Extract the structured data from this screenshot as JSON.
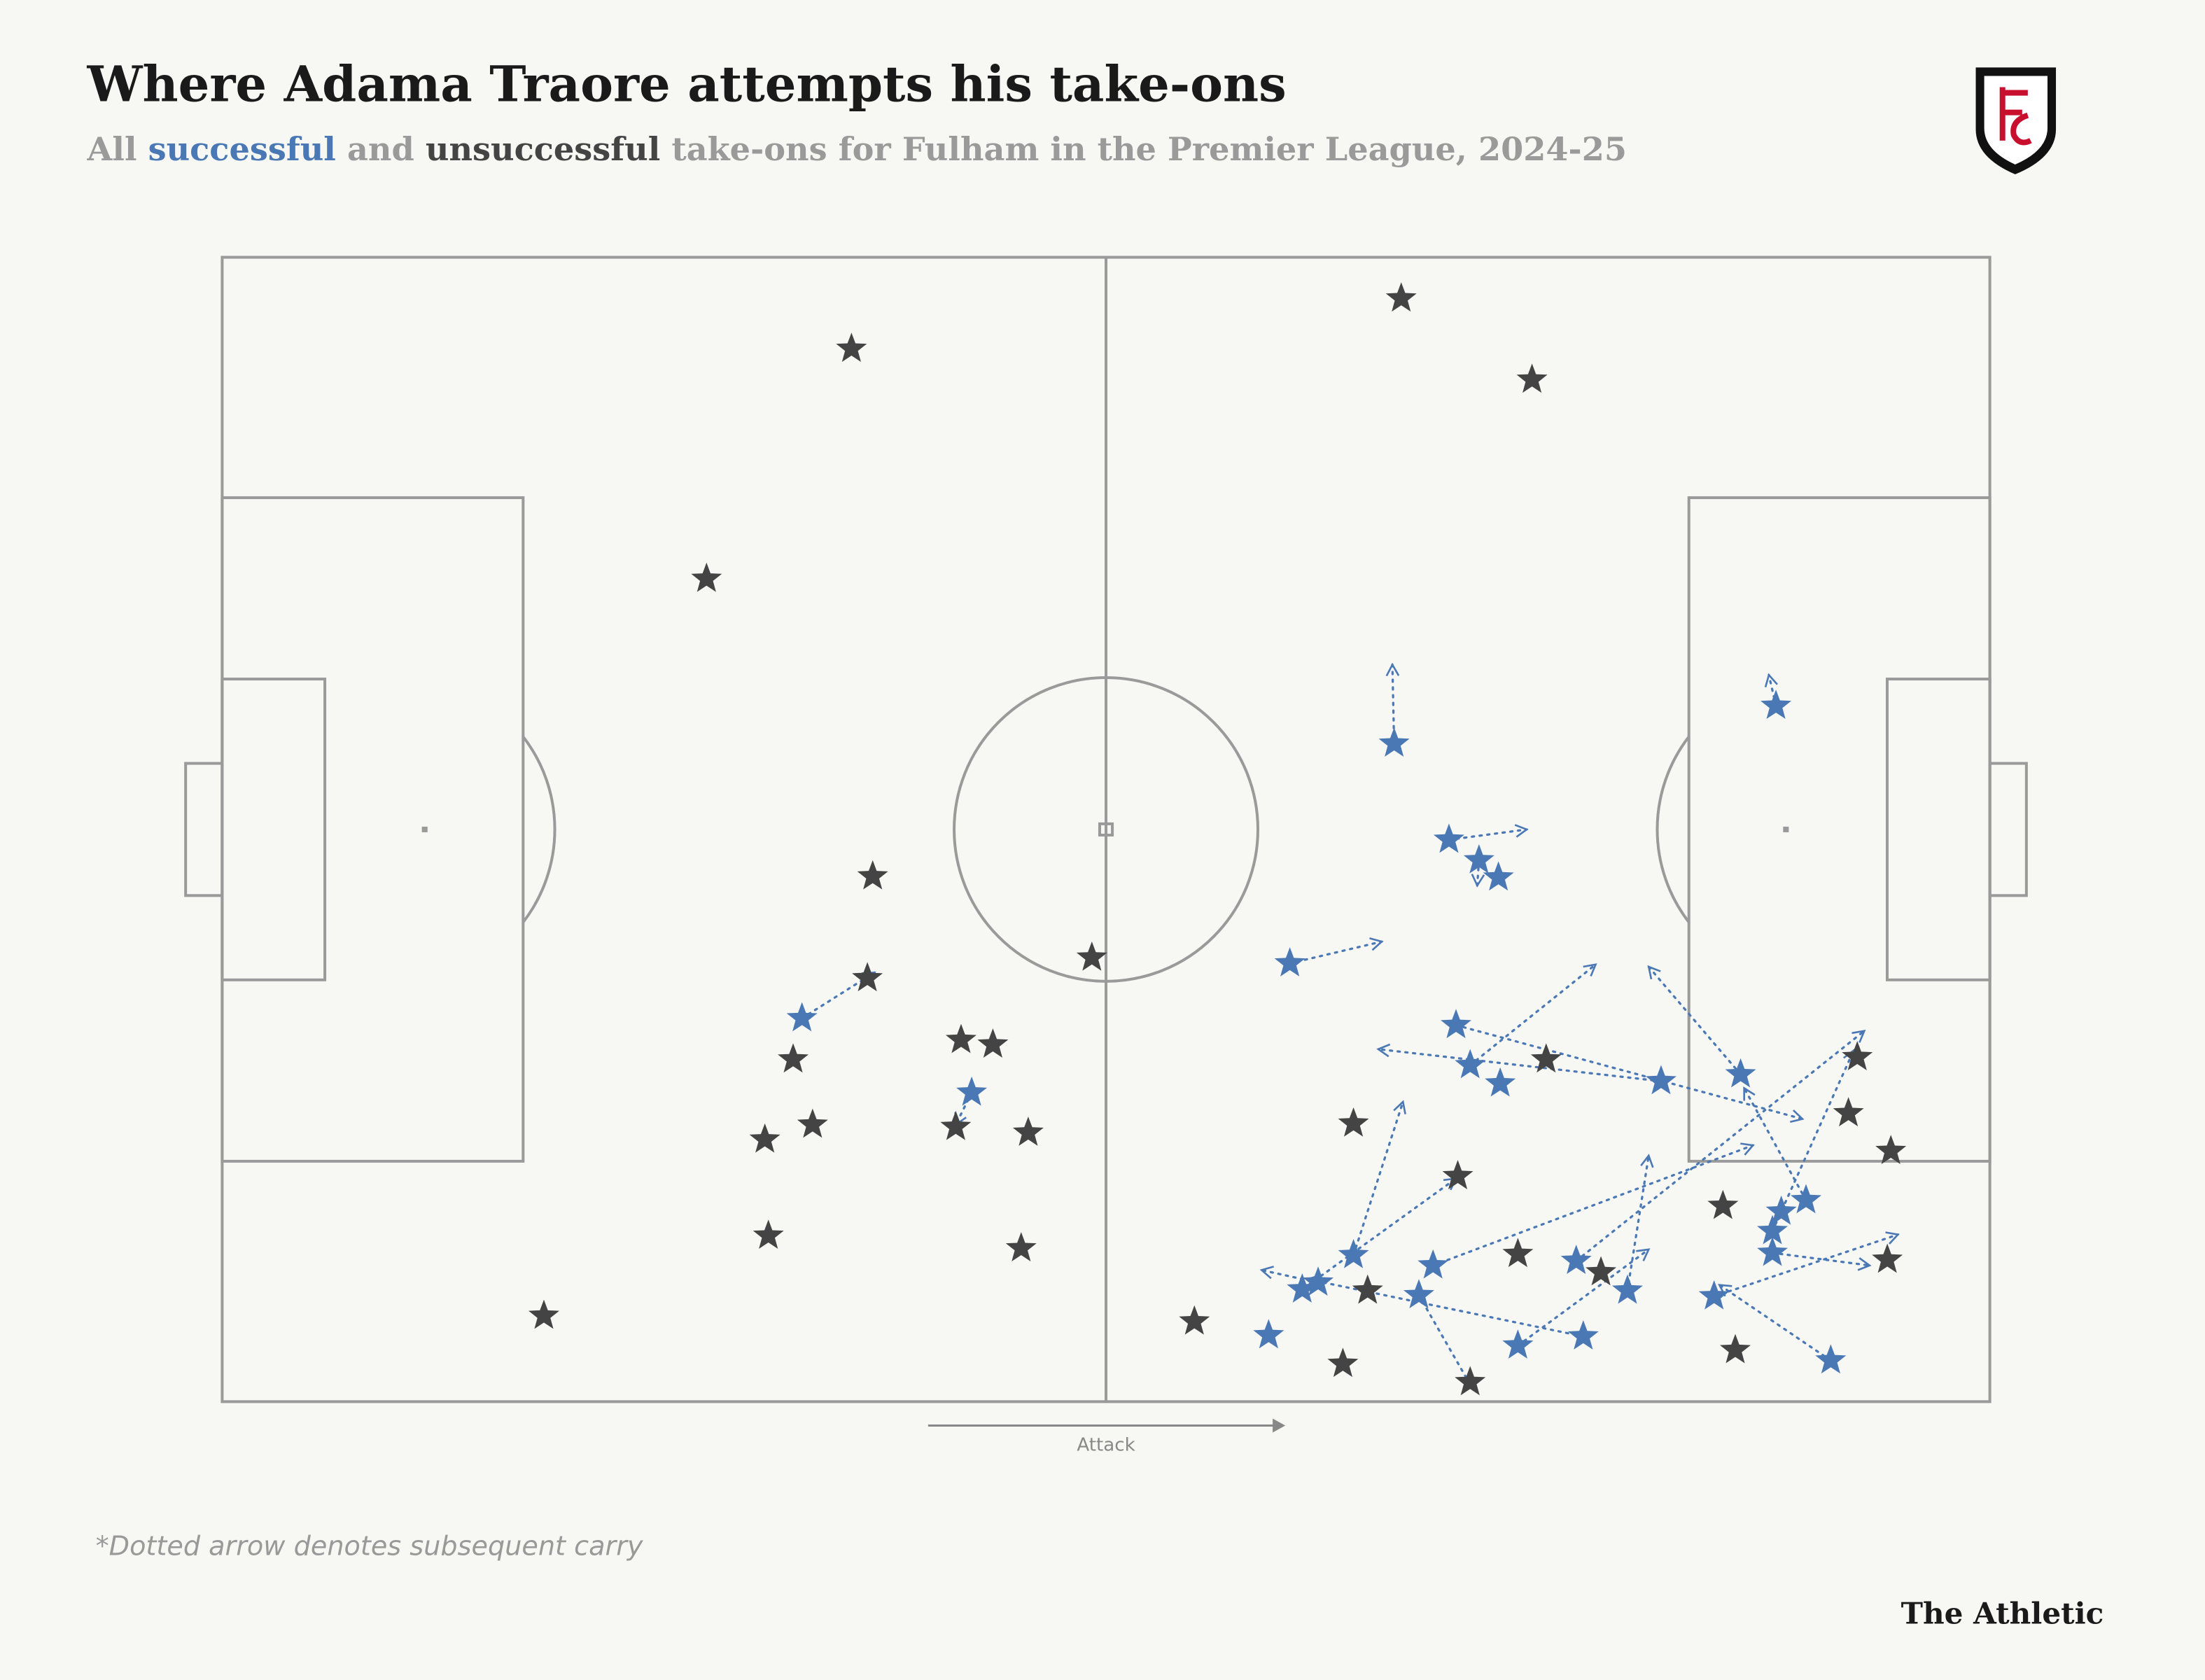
{
  "chart_data": {
    "type": "scatter",
    "title": "Where Adama Traore attempts his take-ons",
    "subtitle_parts": [
      "All",
      "and",
      "take-ons for Fulham in the Premier League, 2024-25"
    ],
    "direction_label": "Attack",
    "footnote": "*Dotted arrow denotes subsequent carry",
    "source": "The Athletic",
    "xlim": [
      0,
      100
    ],
    "ylim": [
      0,
      100
    ],
    "series": [
      {
        "name": "successful",
        "color": "#4a78b5",
        "x": [
          32.8,
          42.4,
          66.3,
          69.4,
          71.1,
          72.2,
          60.4,
          69.8,
          70.6,
          72.3,
          81.4,
          85.9,
          64.0,
          61.1,
          62.0,
          59.2,
          68.5,
          67.7,
          73.3,
          77.0,
          76.6,
          79.5,
          84.4,
          87.7,
          87.7,
          88.2,
          89.6,
          91.0,
          87.9
        ],
        "y": [
          33.5,
          27.0,
          57.5,
          49.1,
          47.3,
          45.8,
          38.3,
          32.9,
          29.4,
          27.8,
          28.0,
          28.6,
          12.8,
          9.8,
          10.4,
          5.8,
          11.9,
          9.3,
          4.9,
          5.7,
          12.3,
          9.7,
          9.2,
          13.0,
          14.9,
          16.6,
          17.6,
          3.6,
          60.8
        ],
        "carry_end_x": [
          36.9,
          41.5,
          66.2,
          73.8,
          71.0,
          null,
          65.6,
          89.4,
          77.7,
          null,
          65.4,
          80.7,
          66.8,
          69.8,
          58.8,
          null,
          86.6,
          70.6,
          80.7,
          61.4,
          92.9,
          80.7,
          94.8,
          93.2,
          92.3,
          null,
          86.1,
          84.7,
          87.5
        ],
        "carry_end_y": [
          37.5,
          24.2,
          64.4,
          50.0,
          45.1,
          null,
          40.2,
          24.7,
          38.2,
          null,
          30.8,
          38.0,
          26.2,
          19.5,
          11.5,
          null,
          22.4,
          1.5,
          13.3,
          10.7,
          32.4,
          21.5,
          14.6,
          11.9,
          30.7,
          null,
          27.4,
          10.2,
          63.5
        ]
      },
      {
        "name": "unsuccessful",
        "color": "#444444",
        "x": [
          35.6,
          66.7,
          74.1,
          27.4,
          36.8,
          36.5,
          49.2,
          32.3,
          41.8,
          43.6,
          30.7,
          33.4,
          41.5,
          45.6,
          30.9,
          45.2,
          18.2,
          55.0,
          64.0,
          74.9,
          69.9,
          64.8,
          63.4,
          70.6,
          73.3,
          78.0,
          84.9,
          85.6,
          92.5,
          92.0,
          94.4,
          94.2
        ],
        "y": [
          92.0,
          96.4,
          89.3,
          71.9,
          45.9,
          37.0,
          38.8,
          29.9,
          31.6,
          31.2,
          22.9,
          24.2,
          24.0,
          23.5,
          14.5,
          13.4,
          7.5,
          7.0,
          24.3,
          29.9,
          19.7,
          9.7,
          3.3,
          1.7,
          12.9,
          11.3,
          17.1,
          4.5,
          30.1,
          25.2,
          21.9,
          12.4
        ]
      }
    ]
  }
}
